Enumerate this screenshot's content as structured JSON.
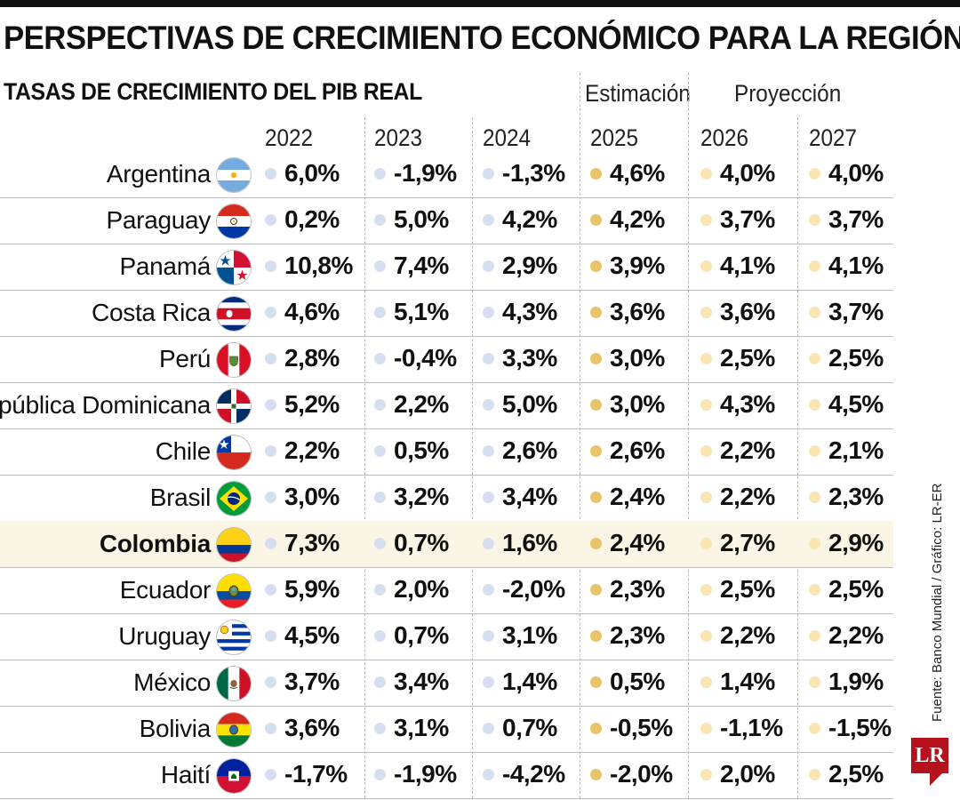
{
  "header": {
    "title": "PERSPECTIVAS DE CRECIMIENTO ECONÓMICO PARA LA REGIÓN",
    "subtitle": "TASAS DE CRECIMIENTO DEL PIB REAL",
    "group_estimate": "Estimación",
    "group_projection": "Proyección"
  },
  "source": "Fuente: Banco Mundial / Gráfico: LR-ER",
  "logo_text": "LR",
  "colors": {
    "historical_dot": "#d6dff0",
    "estimate_dot": "#e9c46a",
    "projection_dot": "#f9e6b3",
    "highlight_row": "#fbf5e6"
  },
  "chart_data": {
    "type": "table",
    "title": "PERSPECTIVAS DE CRECIMIENTO ECONÓMICO PARA LA REGIÓN",
    "subtitle": "TASAS DE CRECIMIENTO DEL PIB REAL",
    "columns": [
      "2022",
      "2023",
      "2024",
      "2025",
      "2026",
      "2027"
    ],
    "column_groups": [
      {
        "label": "",
        "columns": [
          "2022",
          "2023",
          "2024"
        ]
      },
      {
        "label": "Estimación",
        "columns": [
          "2025"
        ]
      },
      {
        "label": "Proyección",
        "columns": [
          "2026",
          "2027"
        ]
      }
    ],
    "rows": [
      {
        "country": "Argentina",
        "flag": "argentina-flag-icon",
        "values": [
          "6,0%",
          "-1,9%",
          "-1,3%",
          "4,6%",
          "4,0%",
          "4,0%"
        ]
      },
      {
        "country": "Paraguay",
        "flag": "paraguay-flag-icon",
        "values": [
          "0,2%",
          "5,0%",
          "4,2%",
          "4,2%",
          "3,7%",
          "3,7%"
        ]
      },
      {
        "country": "Panamá",
        "flag": "panama-flag-icon",
        "values": [
          "10,8%",
          "7,4%",
          "2,9%",
          "3,9%",
          "4,1%",
          "4,1%"
        ]
      },
      {
        "country": "Costa Rica",
        "flag": "costa-rica-flag-icon",
        "values": [
          "4,6%",
          "5,1%",
          "4,3%",
          "3,6%",
          "3,6%",
          "3,7%"
        ]
      },
      {
        "country": "Perú",
        "flag": "peru-flag-icon",
        "values": [
          "2,8%",
          "-0,4%",
          "3,3%",
          "3,0%",
          "2,5%",
          "2,5%"
        ]
      },
      {
        "country": "República Dominicana",
        "flag": "dominican-republic-flag-icon",
        "values": [
          "5,2%",
          "2,2%",
          "5,0%",
          "3,0%",
          "4,3%",
          "4,5%"
        ]
      },
      {
        "country": "Chile",
        "flag": "chile-flag-icon",
        "values": [
          "2,2%",
          "0,5%",
          "2,6%",
          "2,6%",
          "2,2%",
          "2,1%"
        ]
      },
      {
        "country": "Brasil",
        "flag": "brazil-flag-icon",
        "values": [
          "3,0%",
          "3,2%",
          "3,4%",
          "2,4%",
          "2,2%",
          "2,3%"
        ]
      },
      {
        "country": "Colombia",
        "flag": "colombia-flag-icon",
        "highlight": true,
        "values": [
          "7,3%",
          "0,7%",
          "1,6%",
          "2,4%",
          "2,7%",
          "2,9%"
        ]
      },
      {
        "country": "Ecuador",
        "flag": "ecuador-flag-icon",
        "values": [
          "5,9%",
          "2,0%",
          "-2,0%",
          "2,3%",
          "2,5%",
          "2,5%"
        ]
      },
      {
        "country": "Uruguay",
        "flag": "uruguay-flag-icon",
        "values": [
          "4,5%",
          "0,7%",
          "3,1%",
          "2,3%",
          "2,2%",
          "2,2%"
        ]
      },
      {
        "country": "México",
        "flag": "mexico-flag-icon",
        "values": [
          "3,7%",
          "3,4%",
          "1,4%",
          "0,5%",
          "1,4%",
          "1,9%"
        ]
      },
      {
        "country": "Bolivia",
        "flag": "bolivia-flag-icon",
        "values": [
          "3,6%",
          "3,1%",
          "0,7%",
          "-0,5%",
          "-1,1%",
          "-1,5%"
        ]
      },
      {
        "country": "Haití",
        "flag": "haiti-flag-icon",
        "values": [
          "-1,7%",
          "-1,9%",
          "-4,2%",
          "-2,0%",
          "2,0%",
          "2,5%"
        ]
      }
    ]
  }
}
